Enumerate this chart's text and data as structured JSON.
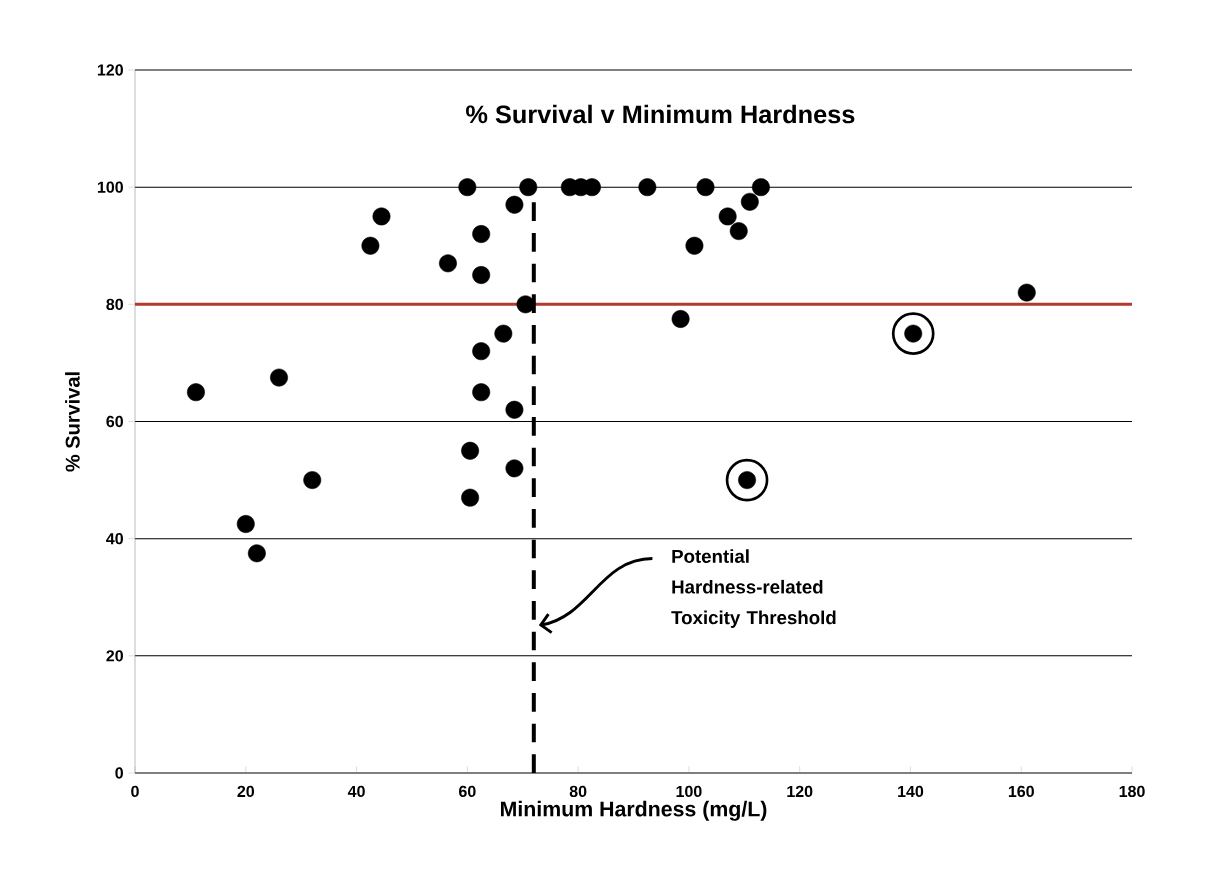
{
  "chart_data": {
    "type": "scatter",
    "title": "% Survival v Minimum Hardness",
    "xlabel": "Minimum Hardness (mg/L)",
    "ylabel": "% Survival",
    "series": [
      {
        "color": "#000000",
        "x": [
          60,
          71,
          78.5,
          80.5,
          82.5,
          92.5,
          103,
          113,
          68.5,
          44.5,
          42.5,
          62.5,
          56.5,
          62.5,
          70.5,
          66.5,
          62.5,
          26,
          11,
          62.5,
          68.5,
          60.5,
          68.5,
          32,
          60.5,
          20,
          22,
          111,
          107,
          109,
          101,
          98.5,
          161
        ],
        "values": [
          100,
          100,
          100,
          100,
          100,
          100,
          100,
          100,
          97,
          95,
          90,
          92,
          87,
          85,
          80,
          75,
          72,
          67.5,
          65,
          65,
          62,
          55,
          52,
          50,
          47,
          42.5,
          37.5,
          97.5,
          95,
          92.5,
          90,
          77.5,
          82
        ]
      },
      {
        "color": "#000000",
        "x": [
          140.5,
          110.5
        ],
        "values": [
          75,
          50
        ]
      }
    ],
    "xlim": [
      0,
      180
    ],
    "ylim": [
      0,
      120
    ],
    "xticks": [
      0,
      20,
      40,
      60,
      80,
      100,
      120,
      140,
      160,
      180
    ],
    "yticks": [
      0,
      20,
      40,
      60,
      80,
      100,
      120
    ],
    "ref_lines": [
      {
        "axis": "y",
        "value": 80,
        "color": "#b03a2e",
        "line_style": "solid"
      },
      {
        "axis": "x",
        "value": 72,
        "color": "#000000",
        "line_style": "dashed"
      }
    ],
    "annotations": [
      "Potential Hardness-related Toxicity Threshold"
    ],
    "grid": "y",
    "marker": "circle"
  }
}
